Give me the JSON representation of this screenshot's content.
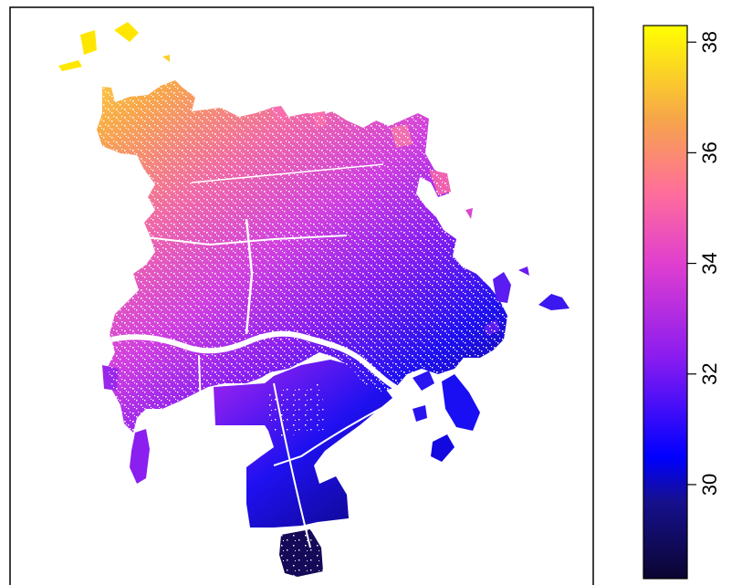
{
  "map": {
    "type": "raster-heatmap",
    "colormap": "plasma",
    "colorbar": {
      "range": [
        28.3,
        38.3
      ],
      "ticks": [
        {
          "value": 30,
          "label": "30"
        },
        {
          "value": 32,
          "label": "32"
        },
        {
          "value": 34,
          "label": "34"
        },
        {
          "value": 36,
          "label": "36"
        },
        {
          "value": 38,
          "label": "38"
        }
      ],
      "colors": [
        "#0b0530",
        "#1a0a8c",
        "#0000ff",
        "#8a1cf0",
        "#e03fcf",
        "#ff6f9a",
        "#f6a54a",
        "#ffff00"
      ]
    },
    "legend_position": "right",
    "grid": false
  }
}
